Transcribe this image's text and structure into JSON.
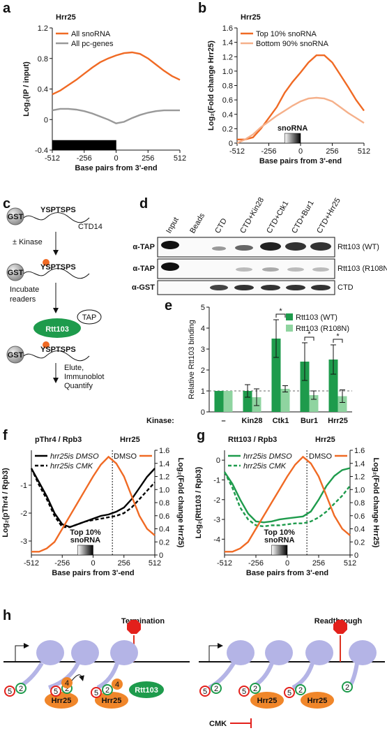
{
  "panel_labels": [
    "a",
    "b",
    "c",
    "d",
    "e",
    "f",
    "g",
    "h"
  ],
  "chart_data": [
    {
      "type": "line",
      "title": "Hrr25",
      "xlabel": "Base pairs from 3'-end",
      "ylabel": "Log₂(IP / input)",
      "x": [
        -512,
        -448,
        -384,
        -320,
        -256,
        -192,
        -128,
        -64,
        0,
        64,
        128,
        192,
        256,
        320,
        384,
        448,
        512
      ],
      "xlim": [
        -512,
        512
      ],
      "xticks": [
        -512,
        -256,
        0,
        256,
        512
      ],
      "ylim": [
        -0.4,
        1.2
      ],
      "yticks": [
        -0.4,
        0,
        0.4,
        0.8,
        1.2
      ],
      "legend": "upper left",
      "band": {
        "range": [
          -512,
          0
        ],
        "style": "solid"
      },
      "series": [
        {
          "name": "All snoRNA",
          "color": "#f06a24",
          "values": [
            0.33,
            0.38,
            0.45,
            0.52,
            0.6,
            0.68,
            0.75,
            0.8,
            0.84,
            0.87,
            0.88,
            0.86,
            0.8,
            0.72,
            0.64,
            0.57,
            0.52
          ]
        },
        {
          "name": "All pc-genes",
          "color": "#999999",
          "values": [
            0.12,
            0.14,
            0.14,
            0.13,
            0.11,
            0.08,
            0.04,
            0,
            -0.05,
            -0.03,
            0.02,
            0.06,
            0.09,
            0.11,
            0.12,
            0.12,
            0.12
          ]
        }
      ]
    },
    {
      "type": "line",
      "title": "Hrr25",
      "xlabel": "Base pairs from 3'-end",
      "ylabel": "Log₂(Fold change Hrr25)",
      "x": [
        -512,
        -448,
        -384,
        -320,
        -256,
        -192,
        -128,
        -64,
        0,
        64,
        128,
        192,
        256,
        320,
        384,
        448,
        512
      ],
      "xlim": [
        -512,
        512
      ],
      "xticks": [
        -512,
        -256,
        0,
        256,
        512
      ],
      "ylim": [
        0,
        1.6
      ],
      "yticks": [
        0,
        0.2,
        0.4,
        0.6,
        0.8,
        {
          "value": 1,
          "label": "1.0"
        },
        1.2,
        1.4,
        1.6
      ],
      "legend": "upper left",
      "band": {
        "range": [
          -128,
          0
        ],
        "style": "gradient",
        "label": [
          "snoRNA"
        ]
      },
      "series": [
        {
          "name": "Top 10% snoRNA",
          "color": "#f06a24",
          "values": [
            0.05,
            0.05,
            0.08,
            0.2,
            0.35,
            0.5,
            0.7,
            0.85,
            0.98,
            1.12,
            1.22,
            1.22,
            1.12,
            0.95,
            0.78,
            0.6,
            0.45
          ]
        },
        {
          "name": "Bottom 90% snoRNA",
          "color": "#f5b08a",
          "values": [
            0,
            0.05,
            0.12,
            0.22,
            0.3,
            0.38,
            0.45,
            0.52,
            0.58,
            0.62,
            0.63,
            0.62,
            0.58,
            0.5,
            0.42,
            0.35,
            0.28
          ]
        }
      ]
    },
    {
      "type": "bar",
      "ylabel": "Relative Rtt103 binding",
      "xlabel": "Kinase:",
      "categories": [
        "–",
        "Kin28",
        "Ctk1",
        "Bur1",
        "Hrr25"
      ],
      "ylim": [
        0,
        5
      ],
      "yticks": [
        0,
        1,
        2,
        3,
        4,
        5
      ],
      "refline": 1,
      "legend": "upper right",
      "significance_label": "*",
      "significant": [
        "Ctk1",
        "Bur1",
        "Hrr25"
      ],
      "series": [
        {
          "name": "Rtt103 (WT)",
          "color": "#1e9b4c",
          "values": [
            1,
            1,
            3.5,
            2.4,
            2.5
          ],
          "errors": [
            0,
            0.3,
            0.9,
            0.9,
            0.7
          ]
        },
        {
          "name": "Rtt103 (R108N)",
          "color": "#8fd4a0",
          "values": [
            1,
            0.7,
            1.1,
            0.8,
            0.75
          ],
          "errors": [
            0,
            0.4,
            0.15,
            0.2,
            0.3
          ]
        }
      ]
    },
    {
      "type": "line",
      "title": "pThr4 / Rpb3",
      "subtitle": "Hrr25",
      "xlabel": "Base pairs from 3'-end",
      "ylabel": "Log₂(pThr4 / Rpb3)",
      "y2label": "Log₂(Fold change Hrr25)",
      "x": [
        -512,
        -448,
        -384,
        -320,
        -256,
        -192,
        -128,
        -64,
        0,
        64,
        128,
        192,
        256,
        320,
        384,
        448,
        512
      ],
      "xlim": [
        -512,
        512
      ],
      "xticks": [
        -512,
        -256,
        0,
        256,
        512
      ],
      "ylim": [
        -3.5,
        0.25
      ],
      "yticks": [
        -1,
        -2,
        -3
      ],
      "y2lim": [
        0,
        1.6
      ],
      "y2ticks": [
        0,
        0.2,
        0.4,
        0.6,
        0.8,
        {
          "value": 1,
          "label": "1.0"
        },
        1.2,
        1.4,
        1.6
      ],
      "legend": "upper left",
      "vline": 160,
      "band": {
        "range": [
          -128,
          0
        ],
        "style": "gradient",
        "label": [
          "Top 10%",
          "snoRNA"
        ]
      },
      "series": [
        {
          "name": "hrr25is DMSO",
          "color": "#000000",
          "values": [
            -0.4,
            -0.9,
            -1.4,
            -2.0,
            -2.4,
            -2.5,
            -2.4,
            -2.3,
            -2.2,
            -2.1,
            -2.05,
            -1.95,
            -1.8,
            -1.5,
            -1.1,
            -0.7,
            -0.4
          ]
        },
        {
          "name": "hrr25is CMK",
          "color": "#000000",
          "dash": true,
          "values": [
            -0.4,
            -1.0,
            -1.5,
            -2.1,
            -2.5,
            -2.5,
            -2.4,
            -2.3,
            -2.25,
            -2.2,
            -2.15,
            -2.1,
            -2.0,
            -1.8,
            -1.5,
            -1.2,
            -0.9
          ]
        },
        {
          "name": "DMSO",
          "color": "#f06a24",
          "axis": "y2",
          "values": [
            0.05,
            0.05,
            0.1,
            0.2,
            0.4,
            0.6,
            0.8,
            1.0,
            1.2,
            1.38,
            1.5,
            1.4,
            1.2,
            0.9,
            0.6,
            0.4,
            0.3
          ]
        }
      ]
    },
    {
      "type": "line",
      "title": "Rtt103 / Rpb3",
      "subtitle": "Hrr25",
      "xlabel": "Base pairs from 3'-end",
      "ylabel": "Log₂(Rtt103 / Rpb3)",
      "y2label": "Log₂(Fold change Hrr25)",
      "x": [
        -512,
        -448,
        -384,
        -320,
        -256,
        -192,
        -128,
        -64,
        0,
        64,
        128,
        192,
        256,
        320,
        384,
        448,
        512
      ],
      "xlim": [
        -512,
        512
      ],
      "xticks": [
        -512,
        -256,
        0,
        256,
        512
      ],
      "ylim": [
        -4.8,
        0.5
      ],
      "yticks": [
        0,
        -1,
        -2,
        -3,
        -4
      ],
      "y2lim": [
        0,
        1.6
      ],
      "y2ticks": [
        0,
        0.2,
        0.4,
        0.6,
        0.8,
        {
          "value": 1,
          "label": "1.0"
        },
        1.2,
        1.4,
        1.6
      ],
      "legend": "upper left",
      "vline": 160,
      "band": {
        "range": [
          -128,
          0
        ],
        "style": "gradient",
        "label": [
          "Top 10%",
          "snoRNA"
        ]
      },
      "series": [
        {
          "name": "hrr25is DMSO",
          "color": "#1e9b4c",
          "values": [
            -0.6,
            -1.2,
            -2.0,
            -2.7,
            -3.1,
            -3.15,
            -3.1,
            -3.0,
            -2.95,
            -2.9,
            -2.85,
            -2.6,
            -2.0,
            -1.3,
            -0.8,
            -0.5,
            -0.4
          ]
        },
        {
          "name": "hrr25is CMK",
          "color": "#1e9b4c",
          "dash": true,
          "values": [
            -0.6,
            -1.4,
            -2.4,
            -3.0,
            -3.3,
            -3.35,
            -3.3,
            -3.3,
            -3.25,
            -3.2,
            -3.2,
            -3.1,
            -2.9,
            -2.6,
            -2.2,
            -1.8,
            -1.3
          ]
        },
        {
          "name": "DMSO",
          "color": "#f06a24",
          "axis": "y2",
          "values": [
            0.05,
            0.05,
            0.1,
            0.2,
            0.4,
            0.6,
            0.8,
            1.0,
            1.2,
            1.38,
            1.5,
            1.4,
            1.2,
            0.9,
            0.6,
            0.4,
            0.3
          ]
        }
      ]
    }
  ],
  "scheme_c": {
    "gst": "GST",
    "motif": "YSPTSPS",
    "ctd": "CTD14",
    "step1": "± Kinase",
    "step2": [
      "Incubate",
      "readers"
    ],
    "reader": "Rtt103",
    "tag": "TAP",
    "step3": [
      "Elute,",
      "Immunoblot",
      "Quantify"
    ]
  },
  "blot_d": {
    "lanes": [
      "Input",
      "Beads",
      "CTD",
      "CTD+Kin28",
      "CTD+Ctk1",
      "CTD+Bur1",
      "CTD+Hrr25"
    ],
    "antibodies": [
      "α-TAP",
      "α-TAP",
      "α-GST"
    ],
    "proteins": [
      "Rtt103 (WT)",
      "Rtt103 (R108N)",
      "CTD"
    ]
  },
  "model_h": {
    "left_title": "Termination",
    "right_title": "Readthrough",
    "kinase": "Hrr25",
    "reader": "Rtt103",
    "inhibitor": "CMK",
    "residues": [
      "5",
      "2",
      "4"
    ]
  }
}
